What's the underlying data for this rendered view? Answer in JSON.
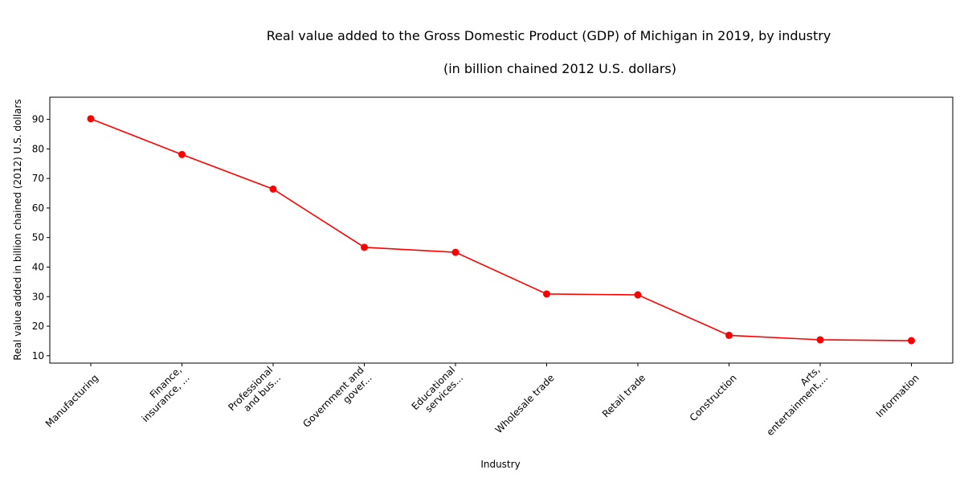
{
  "chart_data": {
    "type": "line",
    "title_line1": "Real value added to the Gross Domestic Product (GDP) of Michigan in 2019, by industry",
    "title_line2": "(in billion chained 2012 U.S. dollars)",
    "xlabel": "Industry",
    "ylabel": "Real value added in billion chained (2012) U.S. dollars",
    "categories": [
      "Manufacturing",
      "Finance,\ninsurance, ...",
      "Professional\nand bus...",
      "Government and\ngover...",
      "Educational\nservices...",
      "Wholesale trade",
      "Retail trade",
      "Construction",
      "Arts,\nentertainment,...",
      "Information"
    ],
    "values": [
      90.2,
      78.1,
      66.4,
      46.7,
      45.0,
      30.9,
      30.6,
      16.9,
      15.4,
      15.1
    ],
    "ylim": [
      7.5,
      97.5
    ],
    "yticks": [
      10,
      20,
      30,
      40,
      50,
      60,
      70,
      80,
      90
    ],
    "color": "#ff0000",
    "grid": false,
    "legend": "none"
  }
}
